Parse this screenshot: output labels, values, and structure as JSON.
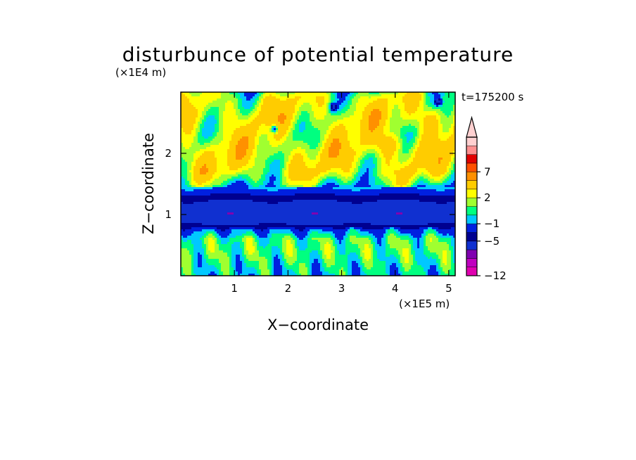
{
  "chart_data": {
    "type": "heatmap",
    "title": "disturbunce of potential temperature",
    "xlabel": "X−coordinate",
    "ylabel": "Z−coordinate",
    "x_scale_label": "(×1E5 m)",
    "y_scale_label": "(×1E4 m)",
    "time_label": "t=175200 s",
    "xlim": [
      0,
      5.12
    ],
    "ylim": [
      0,
      3.0
    ],
    "x_ticks": [
      1,
      2,
      3,
      4,
      5
    ],
    "y_ticks": [
      1,
      2
    ],
    "colorbar": {
      "levels": [
        -12,
        -11,
        -9,
        -7,
        -5,
        -3,
        -1,
        0,
        1,
        2,
        3,
        5,
        7,
        9,
        11
      ],
      "tick_labels": [
        "−12",
        "−5",
        "−1",
        "2",
        "7"
      ],
      "tick_values": [
        -12,
        -5,
        -1,
        2,
        7
      ],
      "extend": "max",
      "colors": [
        "#e000b0",
        "#c000c0",
        "#8000b0",
        "#1030d0",
        "#000090",
        "#0020e0",
        "#00c8ff",
        "#00ff80",
        "#a0ff30",
        "#ffff00",
        "#ffcc00",
        "#ff9000",
        "#ff5000",
        "#e00000",
        "#ff9090",
        "#ffd0d0"
      ]
    },
    "profile": {
      "z": [
        0.0,
        0.2,
        0.4,
        0.6,
        0.75,
        0.85,
        1.0,
        1.2,
        1.3,
        1.4,
        1.5,
        1.7,
        2.0,
        2.3,
        2.6,
        2.9,
        3.0
      ],
      "value": [
        -0.3,
        0.3,
        0.8,
        0.6,
        -1.5,
        -5.5,
        -6.5,
        -5.5,
        -3.5,
        -1.5,
        0.5,
        2.3,
        2.7,
        2.3,
        2.6,
        2.0,
        1.0
      ]
    }
  }
}
